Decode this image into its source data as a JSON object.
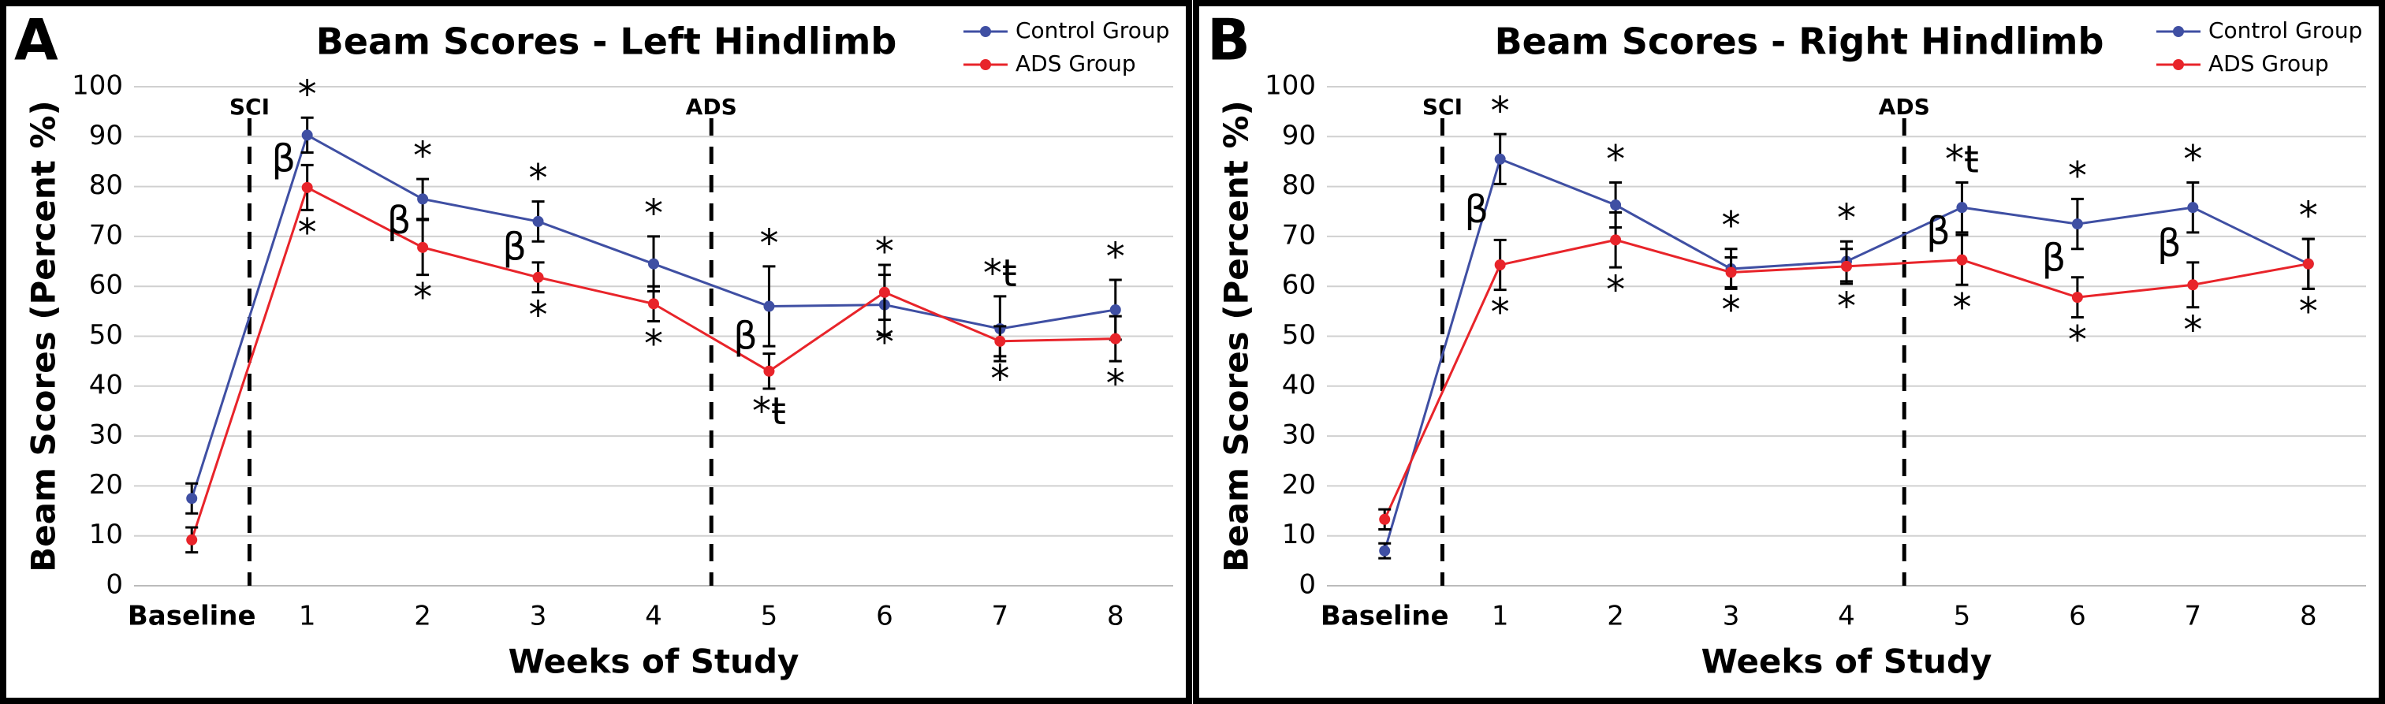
{
  "chart_data": [
    {
      "type": "line",
      "panel": "A",
      "title": "Beam Scores - Left Hindlimb",
      "xlabel": "Weeks of Study",
      "ylabel": "Beam Scores (Percent %)",
      "categories": [
        "Baseline",
        "1",
        "2",
        "3",
        "4",
        "5",
        "6",
        "7",
        "8"
      ],
      "ylim": [
        0,
        100
      ],
      "yticks": [
        0,
        10,
        20,
        30,
        40,
        50,
        60,
        70,
        80,
        90,
        100
      ],
      "grid": true,
      "vlines": [
        {
          "label": "SCI",
          "x": 0.5
        },
        {
          "label": "ADS",
          "x": 4.5
        }
      ],
      "between_labels": [
        null,
        "β",
        "β",
        "β",
        null,
        "β",
        null,
        null,
        null
      ],
      "series": [
        {
          "name": "Control Group",
          "color": "#3f4fa3",
          "values": [
            17.5,
            90.3,
            77.5,
            73,
            64.5,
            56,
            56.3,
            51.5,
            55.3
          ],
          "errors": [
            3,
            3.5,
            4,
            4,
            5.5,
            8,
            6,
            6.5,
            6
          ],
          "labels_above": [
            null,
            "*",
            "*",
            "*",
            "*",
            "*",
            "*",
            "*ŧ",
            "*"
          ]
        },
        {
          "name": "ADS Group",
          "color": "#e8242a",
          "values": [
            9.2,
            79.8,
            67.8,
            61.8,
            56.5,
            43,
            58.8,
            49,
            49.5
          ],
          "errors": [
            2.5,
            4.5,
            5.5,
            3,
            3.5,
            3.5,
            5.5,
            3,
            4.5
          ],
          "labels_below": [
            null,
            "*",
            "*",
            "*",
            "*",
            "*ŧ",
            "*",
            "*",
            "*"
          ]
        }
      ]
    },
    {
      "type": "line",
      "panel": "B",
      "title": "Beam Scores - Right Hindlimb",
      "xlabel": "Weeks of Study",
      "ylabel": "Beam Scores (Percent %)",
      "categories": [
        "Baseline",
        "1",
        "2",
        "3",
        "4",
        "5",
        "6",
        "7",
        "8"
      ],
      "ylim": [
        0,
        100
      ],
      "yticks": [
        0,
        10,
        20,
        30,
        40,
        50,
        60,
        70,
        80,
        90,
        100
      ],
      "grid": true,
      "vlines": [
        {
          "label": "SCI",
          "x": 0.5
        },
        {
          "label": "ADS",
          "x": 4.5
        }
      ],
      "between_labels": [
        null,
        "β",
        null,
        null,
        null,
        "β",
        "β",
        "β",
        null
      ],
      "series": [
        {
          "name": "Control Group",
          "color": "#3f4fa3",
          "values": [
            7,
            85.5,
            76.3,
            63.5,
            65,
            75.8,
            72.5,
            75.8,
            64.5
          ],
          "errors": [
            1.5,
            5,
            4.5,
            4,
            4,
            5,
            5,
            5,
            5
          ],
          "labels_above": [
            null,
            "*",
            "*",
            "*",
            "*",
            "*ŧ",
            "*",
            "*",
            "*"
          ]
        },
        {
          "name": "ADS Group",
          "color": "#e8242a",
          "values": [
            13.3,
            64.3,
            69.3,
            62.8,
            64,
            65.3,
            57.8,
            60.3,
            64.5
          ],
          "errors": [
            2,
            5,
            5.5,
            3,
            3.5,
            5,
            4,
            4.5,
            5
          ],
          "labels_below": [
            null,
            "*",
            "*",
            "*",
            "*",
            "*",
            "*",
            "*",
            "*"
          ]
        }
      ]
    }
  ]
}
